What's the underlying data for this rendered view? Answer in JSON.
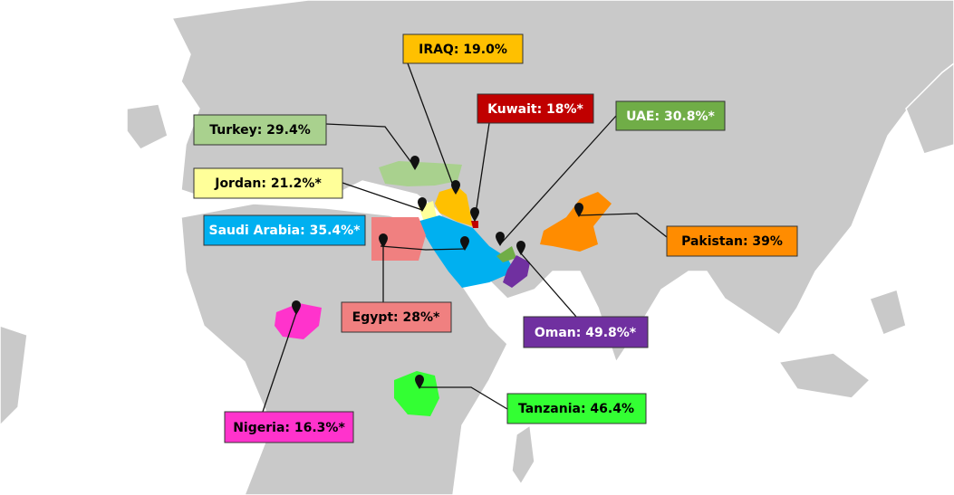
{
  "labels": [
    {
      "text": "IRAQ: 19.0%"
    },
    {
      "text": "Kuwait: 18%*"
    },
    {
      "text": "UAE: 30.8%*"
    },
    {
      "text": "Turkey: 29.4%"
    },
    {
      "text": "Jordan: 21.2%*"
    },
    {
      "text": "Saudi Arabia: 35.4%*"
    },
    {
      "text": "Egypt: 28%*"
    },
    {
      "text": "Pakistan: 39%"
    },
    {
      "text": "Oman: 49.8%*"
    },
    {
      "text": "Nigeria: 16.3%*"
    },
    {
      "text": "Tanzania: 46.4%"
    }
  ]
}
